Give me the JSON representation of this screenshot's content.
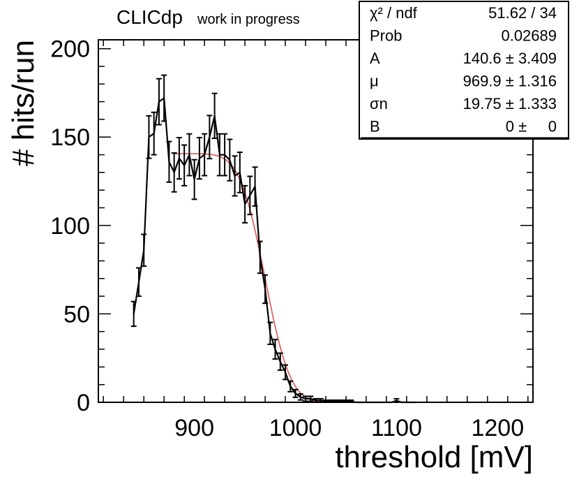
{
  "header": {
    "experiment": "CLICdp",
    "status": "work in progress"
  },
  "stats_box": {
    "rows": [
      {
        "label": "χ² / ndf",
        "value": "51.62 / 34"
      },
      {
        "label": "Prob",
        "value": "0.02689"
      },
      {
        "label": "A",
        "value": "140.6 ± 3.409"
      },
      {
        "label": "μ",
        "value": "969.9 ± 1.316"
      },
      {
        "label": "σn",
        "value": "19.75 ± 1.333"
      },
      {
        "label": "B",
        "value": "0 ±     0"
      }
    ]
  },
  "colors": {
    "data": "#000000",
    "fit": "#e06666",
    "frame": "#000000"
  },
  "chart_data": {
    "type": "line",
    "title": "",
    "xlabel": "threshold [mV]",
    "ylabel": "# hits/run",
    "xlim": [
      805,
      1235
    ],
    "ylim": [
      0,
      205
    ],
    "xticks": [
      900,
      1000,
      1100,
      1200
    ],
    "yticks": [
      0,
      50,
      100,
      150,
      200
    ],
    "series": [
      {
        "name": "data",
        "x": [
          840,
          845,
          850,
          855,
          860,
          865,
          870,
          875,
          880,
          885,
          890,
          895,
          900,
          905,
          910,
          915,
          920,
          925,
          930,
          935,
          940,
          945,
          950,
          955,
          960,
          965,
          970,
          975,
          980,
          985,
          990,
          995,
          1000,
          1005,
          1010,
          1015,
          1020,
          1025,
          1030,
          1035,
          1040,
          1045,
          1050,
          1055,
          1060,
          1065,
          1070,
          1075,
          1080,
          1085,
          1090,
          1095,
          1100,
          1105,
          1110,
          1115,
          1120
        ],
        "y": [
          50,
          68,
          86,
          150,
          152,
          170,
          172,
          136,
          130,
          138,
          134,
          140,
          126,
          138,
          140,
          150,
          162,
          140,
          140,
          137,
          128,
          130,
          112,
          117,
          122,
          82,
          64,
          39,
          30,
          23,
          17,
          9,
          5,
          3,
          2,
          2,
          1,
          1,
          0.5,
          0.5,
          0.5,
          0.5,
          0.5,
          0.5,
          0,
          0,
          0,
          0,
          0,
          0,
          0,
          0,
          1,
          0,
          0,
          0,
          0
        ],
        "err": [
          7,
          8,
          9,
          12,
          12,
          13,
          13,
          11.5,
          11,
          11.7,
          11.5,
          11.8,
          11.2,
          11.7,
          11.8,
          12.2,
          12.7,
          11.8,
          11.8,
          11.7,
          11.3,
          11.4,
          10.5,
          10.8,
          11,
          9,
          8,
          6.2,
          5.5,
          4.8,
          4.1,
          3,
          2.2,
          1.7,
          1.4,
          1.4,
          1,
          1,
          0.7,
          0.7,
          0.7,
          0.7,
          0.7,
          0.7,
          0,
          0,
          0,
          0,
          0,
          0,
          0,
          0,
          1,
          0,
          0,
          0,
          0
        ]
      },
      {
        "name": "fit",
        "function": "A/2 * erfc((x - mu)/(sqrt(2)*sigma)) + B",
        "x_range": [
          880,
          1115
        ],
        "A": 140.6,
        "mu": 969.9,
        "sigma": 19.75,
        "B": 0
      }
    ]
  }
}
